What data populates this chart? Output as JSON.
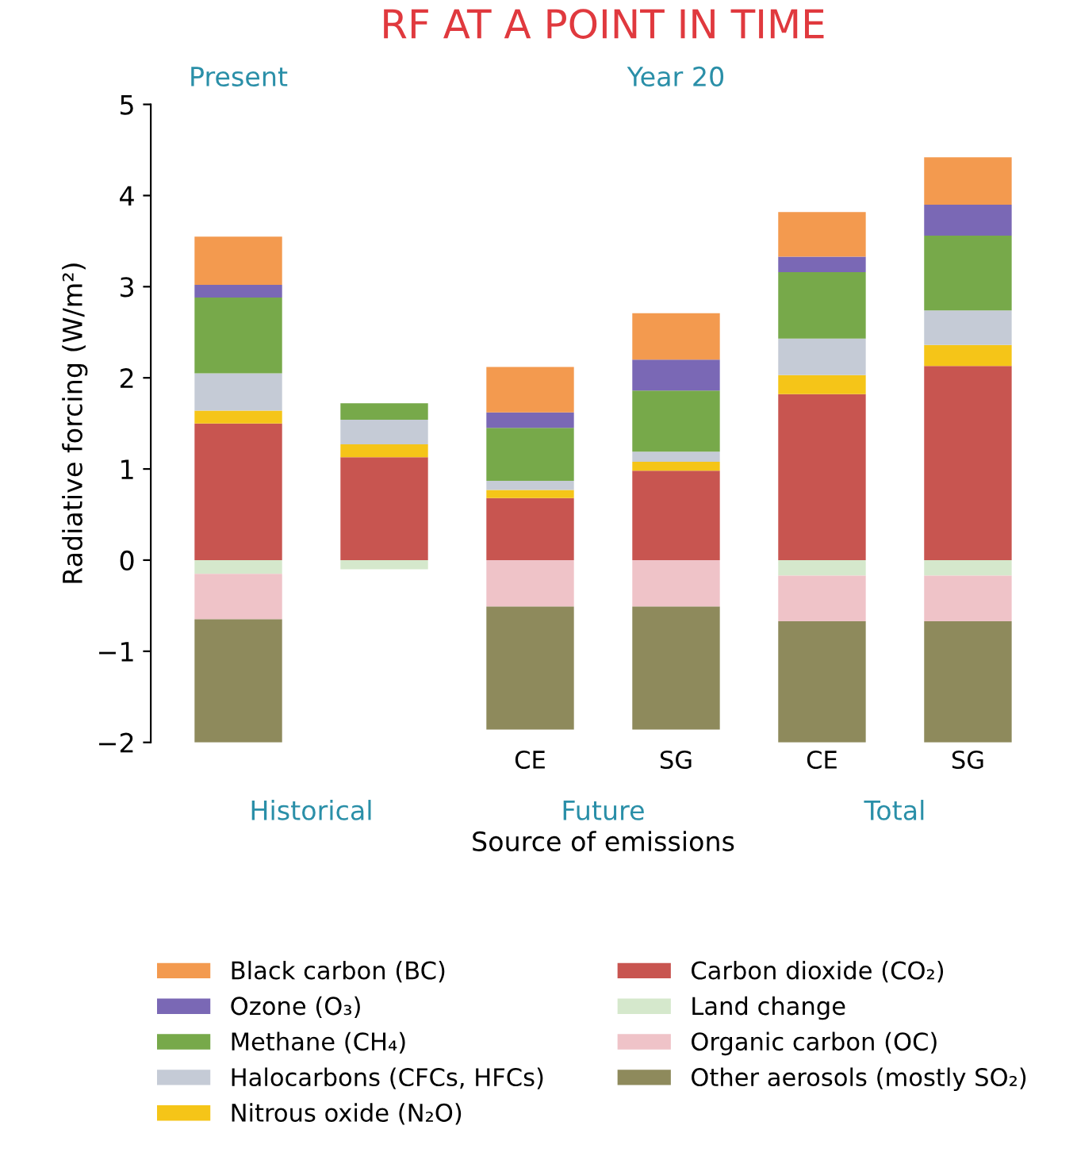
{
  "chart_data": {
    "type": "bar",
    "title": "RF AT A POINT IN TIME",
    "xlabel": "Source of emissions",
    "ylabel": "Radiative forcing (W/m²)",
    "categories": [
      null,
      null,
      "CE",
      "SG",
      "CE",
      "SG"
    ],
    "annotations": [
      "Present",
      "Year 20",
      "Historical",
      "Future",
      "Total"
    ],
    "stacked": true,
    "legend": "bottom",
    "grid": false,
    "ylim": [
      -2,
      5
    ],
    "yticks": [
      -2,
      -1,
      0,
      1,
      2,
      3,
      4,
      5
    ],
    "series": [
      {
        "name": "Carbon dioxide (CO₂)",
        "color": "#c85550",
        "values": [
          1.5,
          1.13,
          0.68,
          0.98,
          1.82,
          2.13
        ]
      },
      {
        "name": "Nitrous oxide (N₂O)",
        "color": "#f5c518",
        "values": [
          0.14,
          0.14,
          0.09,
          0.1,
          0.21,
          0.23
        ]
      },
      {
        "name": "Halocarbons (CFCs, HFCs)",
        "color": "#c5cbd6",
        "values": [
          0.41,
          0.27,
          0.1,
          0.11,
          0.4,
          0.38
        ]
      },
      {
        "name": "Methane (CH₄)",
        "color": "#77a94a",
        "values": [
          0.83,
          0.18,
          0.58,
          0.67,
          0.73,
          0.82
        ]
      },
      {
        "name": "Ozone (O₃)",
        "color": "#7a68b5",
        "values": [
          0.14,
          null,
          0.17,
          0.34,
          0.17,
          0.34
        ]
      },
      {
        "name": "Black carbon (BC)",
        "color": "#f39a4f",
        "values": [
          0.53,
          null,
          0.5,
          0.51,
          0.49,
          0.52
        ]
      },
      {
        "name": "Land change",
        "color": "#d5e8cc",
        "values": [
          -0.15,
          -0.1,
          null,
          null,
          -0.17,
          -0.17
        ]
      },
      {
        "name": "Organic carbon (OC)",
        "color": "#efc3c8",
        "values": [
          -0.5,
          null,
          -0.51,
          -0.51,
          -0.5,
          -0.5
        ]
      },
      {
        "name": "Other aerosols (mostly SO₂)",
        "color": "#8e8a5c",
        "values": [
          -1.35,
          null,
          -1.35,
          -1.35,
          -1.33,
          -1.33
        ]
      }
    ]
  }
}
